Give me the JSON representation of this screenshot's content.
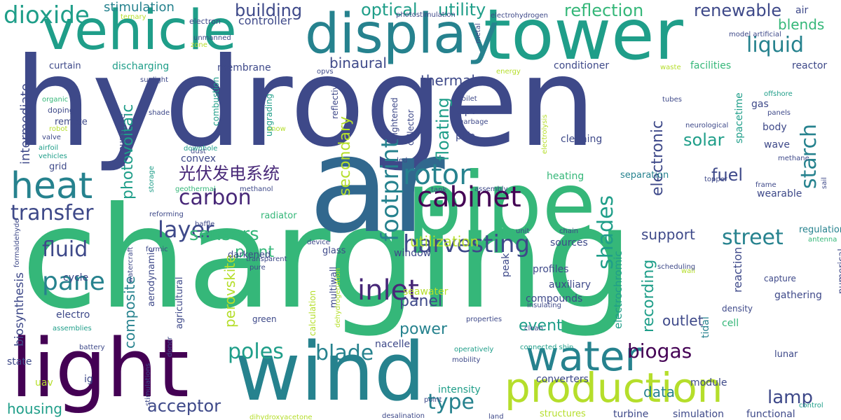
{
  "palette": {
    "navy": "#3e4989",
    "blue": "#31688e",
    "teal": "#26828e",
    "green": "#35b779",
    "emerald": "#1f9e89",
    "lime": "#b5de2b",
    "purple": "#482878",
    "dark_purple": "#440154",
    "yellow_green": "#6ece58"
  },
  "words": [
    "hydrogen",
    "charging",
    "light",
    "wind",
    "ar",
    "pipe",
    "tower",
    "display",
    "vehicle",
    "production",
    "water",
    "heat",
    "dioxide",
    "cabinet",
    "harvesting",
    "rotor",
    "carbon",
    "layer",
    "fluid",
    "transfer",
    "pane",
    "inlet",
    "blade",
    "poles",
    "street",
    "shades",
    "starch",
    "liquid",
    "renewable",
    "reflection",
    "building",
    "optical",
    "utility",
    "stimulation",
    "electron",
    "controller",
    "air",
    "blends",
    "solar",
    "fuel",
    "lamp",
    "biogas",
    "type",
    "acceptor",
    "housing",
    "sensors",
    "plant",
    "footprint",
    "secondary",
    "electronic",
    "floating",
    "thermal",
    "binaural",
    "membrane",
    "discharging",
    "curtain",
    "photovoltaic",
    "intermediate",
    "biosynthesis",
    "composite",
    "perovskite",
    "event",
    "recording",
    "data",
    "support",
    "power",
    "panel",
    "utilization",
    "heating",
    "separation",
    "wearable",
    "regulation",
    "numerical",
    "gathering",
    "tidal",
    "lunar",
    "module",
    "simulation",
    "functional",
    "turbine",
    "structures",
    "desalination",
    "converters",
    "intensity",
    "mobility",
    "nacelle",
    "seawater",
    "window",
    "multiwall",
    "calculation",
    "glass",
    "darkened",
    "aerodynamic",
    "agricultural",
    "electro",
    "cycle",
    "state",
    "uav",
    "ig",
    "grid",
    "remote",
    "doping",
    "organic",
    "robot",
    "valve",
    "airfoil",
    "vehicles",
    "convex",
    "upgrading",
    "combustion",
    "cleaning",
    "sunlight",
    "reflective",
    "bipv",
    "ptfe",
    "garbage",
    "toilet",
    "electrolysis",
    "brightened",
    "collector",
    "acupuncture",
    "radiator",
    "methanol",
    "geothermal",
    "reforming",
    "baffle",
    "formic",
    "formaldehyde",
    "transparent",
    "pure",
    "watercraft",
    "assemblies",
    "battery",
    "donor",
    "green",
    "profiles",
    "auxiliary",
    "compounds",
    "peak",
    "insulating",
    "clean",
    "properties",
    "operatively",
    "connected ship",
    "land",
    "point",
    "dihydroxyacetone",
    "stimulations",
    "reactor",
    "facilities",
    "conditioner",
    "gas",
    "body",
    "wave",
    "offshore",
    "panels",
    "neurological",
    "methane",
    "spacetime",
    "tubes",
    "waste",
    "model artificial",
    "energy",
    "photostimulation",
    "electrohydrogen",
    "ternary",
    "unmanned",
    "zone",
    "opvs",
    "shade",
    "metal",
    "snow",
    "dust",
    "storage",
    "downhole",
    "led",
    "tank",
    "assembly",
    "topper",
    "frame",
    "sail",
    "antenna",
    "outlet",
    "reaction",
    "density",
    "cell",
    "wall",
    "capture",
    "scheduling",
    "electrochromic",
    "device",
    "unit",
    "chain",
    "control",
    "sources",
    "dehydrogenation",
    "光伏发电系统"
  ]
}
